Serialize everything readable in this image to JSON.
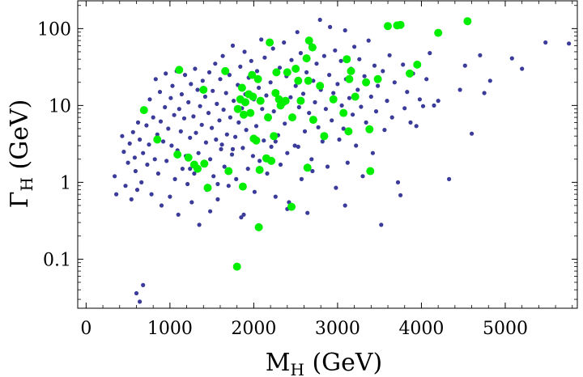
{
  "chart_data": {
    "type": "scatter",
    "title": "",
    "xlabel": {
      "main": "M",
      "sub": "H",
      "unit": " (GeV)"
    },
    "ylabel": {
      "main": "Γ",
      "sub": "H",
      "unit": " (GeV)"
    },
    "xlim": [
      -100,
      5860
    ],
    "ylim": [
      0.023,
      230
    ],
    "y_scale": "log",
    "x_ticks": [
      0,
      1000,
      2000,
      3000,
      4000,
      5000
    ],
    "x_tick_labels": [
      "0",
      "1000",
      "2000",
      "3000",
      "4000",
      "5000"
    ],
    "y_ticks": [
      0.1,
      1,
      10,
      100
    ],
    "y_tick_labels": [
      "0.1",
      "1",
      "10",
      "100"
    ],
    "grid": false,
    "colors": {
      "series_blue": "#3b3b9a",
      "series_green": "#00ee00",
      "frame": "#000000"
    },
    "series": [
      {
        "name": "blue",
        "points": [
          [
            600,
            0.036
          ],
          [
            640,
            0.028
          ],
          [
            680,
            0.046
          ],
          [
            340,
            1.2
          ],
          [
            360,
            0.7
          ],
          [
            430,
            4.0
          ],
          [
            450,
            2.5
          ],
          [
            470,
            0.9
          ],
          [
            500,
            1.8
          ],
          [
            520,
            3.2
          ],
          [
            540,
            0.6
          ],
          [
            560,
            4.5
          ],
          [
            580,
            2.1
          ],
          [
            590,
            1.4
          ],
          [
            610,
            0.8
          ],
          [
            620,
            6.0
          ],
          [
            640,
            3.6
          ],
          [
            660,
            1.0
          ],
          [
            680,
            2.4
          ],
          [
            700,
            9.0
          ],
          [
            720,
            5.5
          ],
          [
            730,
            1.7
          ],
          [
            750,
            3.1
          ],
          [
            760,
            12.0
          ],
          [
            780,
            0.7
          ],
          [
            800,
            7.0
          ],
          [
            820,
            2.0
          ],
          [
            830,
            22.0
          ],
          [
            850,
            4.2
          ],
          [
            860,
            1.3
          ],
          [
            880,
            15.0
          ],
          [
            890,
            6.2
          ],
          [
            900,
            0.5
          ],
          [
            920,
            3.4
          ],
          [
            940,
            9.5
          ],
          [
            950,
            26.0
          ],
          [
            960,
            1.9
          ],
          [
            980,
            5.0
          ],
          [
            1000,
            0.65
          ],
          [
            1010,
            12.5
          ],
          [
            1020,
            3.0
          ],
          [
            1030,
            18.0
          ],
          [
            1050,
            7.5
          ],
          [
            1060,
            1.1
          ],
          [
            1080,
            28.0
          ],
          [
            1090,
            2.6
          ],
          [
            1100,
            0.38
          ],
          [
            1110,
            9.0
          ],
          [
            1130,
            4.6
          ],
          [
            1140,
            14.0
          ],
          [
            1150,
            1.5
          ],
          [
            1170,
            6.8
          ],
          [
            1180,
            25.0
          ],
          [
            1190,
            2.2
          ],
          [
            1210,
            0.95
          ],
          [
            1220,
            11.0
          ],
          [
            1240,
            3.8
          ],
          [
            1250,
            19.0
          ],
          [
            1260,
            0.55
          ],
          [
            1280,
            7.2
          ],
          [
            1290,
            1.3
          ],
          [
            1300,
            30.0
          ],
          [
            1310,
            4.4
          ],
          [
            1330,
            16.0
          ],
          [
            1340,
            2.4
          ],
          [
            1350,
            0.28
          ],
          [
            1360,
            9.8
          ],
          [
            1380,
            5.6
          ],
          [
            1390,
            21.0
          ],
          [
            1400,
            1.7
          ],
          [
            1420,
            13.0
          ],
          [
            1430,
            3.3
          ],
          [
            1440,
            0.8
          ],
          [
            1460,
            8.0
          ],
          [
            1470,
            27.0
          ],
          [
            1480,
            2.0
          ],
          [
            1500,
            5.1
          ],
          [
            1510,
            15.5
          ],
          [
            1520,
            1.2
          ],
          [
            1540,
            35.0
          ],
          [
            1550,
            3.6
          ],
          [
            1560,
            10.5
          ],
          [
            1570,
            0.6
          ],
          [
            1590,
            6.4
          ],
          [
            1600,
            22.0
          ],
          [
            1610,
            2.7
          ],
          [
            1630,
            44.0
          ],
          [
            1640,
            8.8
          ],
          [
            1650,
            1.6
          ],
          [
            1670,
            14.5
          ],
          [
            1680,
            4.2
          ],
          [
            1700,
            0.9
          ],
          [
            1710,
            25.0
          ],
          [
            1720,
            7.0
          ],
          [
            1740,
            2.3
          ],
          [
            1750,
            60.0
          ],
          [
            1760,
            11.5
          ],
          [
            1780,
            3.9
          ],
          [
            1790,
            1.1
          ],
          [
            1810,
            18.5
          ],
          [
            1820,
            6.0
          ],
          [
            1840,
            32.0
          ],
          [
            1850,
            0.35
          ],
          [
            1860,
            9.2
          ],
          [
            1870,
            2.8
          ],
          [
            1890,
            50.0
          ],
          [
            1900,
            14.0
          ],
          [
            1910,
            4.8
          ],
          [
            1930,
            1.5
          ],
          [
            1940,
            23.0
          ],
          [
            1960,
            7.8
          ],
          [
            1970,
            38.0
          ],
          [
            1990,
            2.2
          ],
          [
            2000,
            12.0
          ],
          [
            2010,
            0.75
          ],
          [
            2030,
            5.4
          ],
          [
            2040,
            28.0
          ],
          [
            2060,
            17.0
          ],
          [
            2070,
            1.9
          ],
          [
            2090,
            72.0
          ],
          [
            2100,
            9.0
          ],
          [
            2120,
            3.5
          ],
          [
            2130,
            42.0
          ],
          [
            2150,
            13.5
          ],
          [
            2160,
            1.3
          ],
          [
            2180,
            6.6
          ],
          [
            2200,
            20.0
          ],
          [
            2210,
            2.9
          ],
          [
            2230,
            55.0
          ],
          [
            2240,
            8.4
          ],
          [
            2260,
            0.65
          ],
          [
            2280,
            15.0
          ],
          [
            2290,
            4.1
          ],
          [
            2310,
            31.0
          ],
          [
            2320,
            1.7
          ],
          [
            2340,
            10.5
          ],
          [
            2360,
            66.0
          ],
          [
            2370,
            5.8
          ],
          [
            2390,
            24.0
          ],
          [
            2400,
            2.4
          ],
          [
            2420,
            0.55
          ],
          [
            2440,
            12.8
          ],
          [
            2450,
            39.0
          ],
          [
            2470,
            7.1
          ],
          [
            2490,
            3.0
          ],
          [
            2500,
            18.0
          ],
          [
            2520,
            90.0
          ],
          [
            2540,
            9.5
          ],
          [
            2560,
            48.0
          ],
          [
            2570,
            1.1
          ],
          [
            2590,
            14.2
          ],
          [
            2610,
            4.6
          ],
          [
            2630,
            27.0
          ],
          [
            2640,
            0.4
          ],
          [
            2660,
            8.0
          ],
          [
            2680,
            62.0
          ],
          [
            2690,
            2.0
          ],
          [
            2710,
            21.0
          ],
          [
            2730,
            11.0
          ],
          [
            2750,
            35.0
          ],
          [
            2770,
            5.2
          ],
          [
            2790,
            130.0
          ],
          [
            2800,
            16.0
          ],
          [
            2820,
            3.4
          ],
          [
            2840,
            44.0
          ],
          [
            2860,
            9.0
          ],
          [
            2880,
            1.6
          ],
          [
            2900,
            25.0
          ],
          [
            2910,
            105.0
          ],
          [
            2930,
            6.4
          ],
          [
            2950,
            14.5
          ],
          [
            2970,
            52.0
          ],
          [
            2980,
            0.85
          ],
          [
            3000,
            19.0
          ],
          [
            3020,
            3.6
          ],
          [
            3040,
            38.0
          ],
          [
            3050,
            10.0
          ],
          [
            3070,
            5.0
          ],
          [
            3090,
            95.0
          ],
          [
            3100,
            22.0
          ],
          [
            3120,
            1.8
          ],
          [
            3140,
            12.5
          ],
          [
            3160,
            30.0
          ],
          [
            3180,
            7.6
          ],
          [
            3200,
            58.0
          ],
          [
            3220,
            3.0
          ],
          [
            3240,
            16.0
          ],
          [
            3260,
            40.0
          ],
          [
            3280,
            9.6
          ],
          [
            3300,
            1.2
          ],
          [
            3320,
            24.0
          ],
          [
            3340,
            6.0
          ],
          [
            3370,
            70.0
          ],
          [
            3400,
            13.0
          ],
          [
            3420,
            2.4
          ],
          [
            3440,
            33.0
          ],
          [
            3460,
            8.4
          ],
          [
            3480,
            18.0
          ],
          [
            3520,
            0.28
          ],
          [
            3540,
            28.0
          ],
          [
            3560,
            4.8
          ],
          [
            3590,
            11.5
          ],
          [
            3620,
            45.0
          ],
          [
            3650,
            7.0
          ],
          [
            3680,
            20.0
          ],
          [
            3720,
            1.0
          ],
          [
            3750,
            0.68
          ],
          [
            3780,
            34.0
          ],
          [
            3800,
            9.2
          ],
          [
            3830,
            15.0
          ],
          [
            3870,
            6.0
          ],
          [
            3900,
            26.0
          ],
          [
            3940,
            5.4
          ],
          [
            3980,
            12.0
          ],
          [
            4020,
            9.8
          ],
          [
            4060,
            22.0
          ],
          [
            4100,
            48.0
          ],
          [
            4150,
            10.0
          ],
          [
            4200,
            11.5
          ],
          [
            4330,
            1.1
          ],
          [
            4460,
            16.0
          ],
          [
            4520,
            33.0
          ],
          [
            4600,
            4.3
          ],
          [
            4700,
            45.0
          ],
          [
            4750,
            14.5
          ],
          [
            4820,
            21.0
          ],
          [
            5080,
            41.0
          ],
          [
            5200,
            30.0
          ],
          [
            5480,
            66.0
          ],
          [
            5760,
            64.0
          ],
          [
            1240,
            1.5
          ],
          [
            1480,
            0.42
          ],
          [
            1570,
            0.95
          ],
          [
            1620,
            3.1
          ],
          [
            1750,
            2.7
          ],
          [
            1880,
            0.38
          ],
          [
            2260,
            3.4
          ],
          [
            2400,
            0.45
          ],
          [
            2530,
            2.9
          ],
          [
            2700,
            1.4
          ],
          [
            3090,
            0.5
          ]
        ]
      },
      {
        "name": "green",
        "points": [
          [
            690,
            8.7
          ],
          [
            850,
            3.6
          ],
          [
            1090,
            2.3
          ],
          [
            1110,
            29.0
          ],
          [
            1220,
            2.1
          ],
          [
            1290,
            1.7
          ],
          [
            1330,
            1.5
          ],
          [
            1400,
            16.0
          ],
          [
            1410,
            1.75
          ],
          [
            1450,
            0.85
          ],
          [
            1660,
            28.0
          ],
          [
            1700,
            1.4
          ],
          [
            1800,
            0.08
          ],
          [
            1810,
            9.0
          ],
          [
            1840,
            12.0
          ],
          [
            1860,
            17.0
          ],
          [
            1870,
            0.88
          ],
          [
            1880,
            7.6
          ],
          [
            1900,
            11.0
          ],
          [
            1940,
            14.0
          ],
          [
            1960,
            8.0
          ],
          [
            1980,
            25.0
          ],
          [
            1990,
            13.0
          ],
          [
            2000,
            3.7
          ],
          [
            2030,
            3.5
          ],
          [
            2050,
            22.0
          ],
          [
            2060,
            0.26
          ],
          [
            2070,
            1.45
          ],
          [
            2080,
            11.5
          ],
          [
            2150,
            2.05
          ],
          [
            2170,
            7.0
          ],
          [
            2190,
            66.0
          ],
          [
            2210,
            1.9
          ],
          [
            2240,
            4.0
          ],
          [
            2260,
            14.5
          ],
          [
            2270,
            27.0
          ],
          [
            2300,
            12.0
          ],
          [
            2320,
            10.0
          ],
          [
            2350,
            11.0
          ],
          [
            2380,
            11.5
          ],
          [
            2400,
            27.0
          ],
          [
            2450,
            0.48
          ],
          [
            2460,
            7.0
          ],
          [
            2500,
            30.0
          ],
          [
            2530,
            21.0
          ],
          [
            2560,
            11.5
          ],
          [
            2630,
            41.0
          ],
          [
            2640,
            1.55
          ],
          [
            2650,
            21.0
          ],
          [
            2660,
            70.0
          ],
          [
            2700,
            57.0
          ],
          [
            2710,
            6.5
          ],
          [
            2790,
            18.0
          ],
          [
            2840,
            4.0
          ],
          [
            2950,
            12.0
          ],
          [
            3070,
            8.0
          ],
          [
            3110,
            40.0
          ],
          [
            3130,
            4.6
          ],
          [
            3140,
            22.0
          ],
          [
            3160,
            28.0
          ],
          [
            3210,
            13.0
          ],
          [
            3340,
            20.0
          ],
          [
            3380,
            4.9
          ],
          [
            3390,
            1.4
          ],
          [
            3480,
            22.0
          ],
          [
            3600,
            108.0
          ],
          [
            3710,
            110.0
          ],
          [
            3750,
            112.0
          ],
          [
            3860,
            26.0
          ],
          [
            3950,
            34.0
          ],
          [
            4200,
            88.0
          ],
          [
            4550,
            125.0
          ]
        ]
      }
    ]
  }
}
